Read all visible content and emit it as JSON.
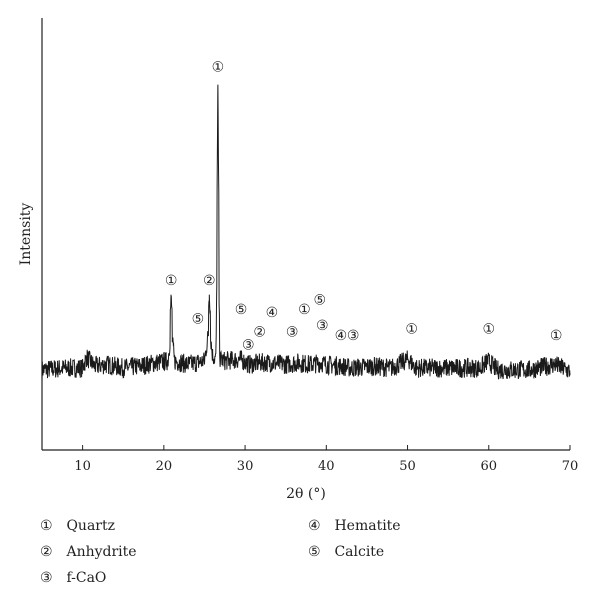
{
  "chart_data": {
    "type": "line",
    "xlabel": "2θ (°)",
    "ylabel": "Intensity",
    "xlim": [
      5,
      70
    ],
    "xticks": [
      "10",
      "20",
      "30",
      "40",
      "50",
      "60",
      "70"
    ],
    "ylim": [
      0,
      100
    ],
    "y_ticks_shown": false,
    "grid": false,
    "legend_placement": "bottom",
    "series": [
      {
        "x": [
          5,
          8,
          10,
          10.5,
          11.5,
          13,
          15,
          17,
          19,
          20.5,
          20.9,
          21.3,
          23,
          25,
          25.6,
          26.0,
          26.4,
          26.65,
          26.9,
          27.5,
          29.4,
          30.5,
          32,
          33,
          35,
          36.5,
          38,
          39.4,
          40,
          42,
          43,
          45.8,
          48,
          50.1,
          51,
          55,
          59,
          59.9,
          61,
          65,
          68.1,
          70
        ],
        "y": [
          4,
          5,
          5,
          11,
          6,
          7,
          5,
          6,
          8,
          9,
          27,
          9,
          7,
          9,
          28,
          12,
          10,
          93,
          10,
          9,
          10,
          7,
          8,
          8,
          7,
          8,
          7,
          8,
          7,
          6,
          5,
          6,
          5,
          10,
          5,
          5,
          5,
          9,
          4,
          4,
          7,
          3
        ]
      }
    ],
    "annotations": [
      {
        "label": "①",
        "x": 26.65,
        "y": 97
      },
      {
        "label": "①",
        "x": 20.9,
        "y": 31
      },
      {
        "label": "②",
        "x": 25.6,
        "y": 31
      },
      {
        "label": "⑤",
        "x": 24.2,
        "y": 19
      },
      {
        "label": "⑤",
        "x": 29.5,
        "y": 22
      },
      {
        "label": "③",
        "x": 30.4,
        "y": 11
      },
      {
        "label": "②",
        "x": 31.8,
        "y": 15
      },
      {
        "label": "④",
        "x": 33.3,
        "y": 21
      },
      {
        "label": "③",
        "x": 35.8,
        "y": 15
      },
      {
        "label": "①",
        "x": 37.3,
        "y": 22
      },
      {
        "label": "⑤",
        "x": 39.2,
        "y": 25
      },
      {
        "label": "③",
        "x": 39.5,
        "y": 17
      },
      {
        "label": "④",
        "x": 41.8,
        "y": 14
      },
      {
        "label": "③",
        "x": 43.3,
        "y": 14
      },
      {
        "label": "①",
        "x": 50.5,
        "y": 16
      },
      {
        "label": "①",
        "x": 60.0,
        "y": 16
      },
      {
        "label": "①",
        "x": 68.3,
        "y": 14
      }
    ],
    "legend": [
      {
        "symbol": "①",
        "label": "Quartz"
      },
      {
        "symbol": "②",
        "label": "Anhydrite"
      },
      {
        "symbol": "③",
        "label": "f-CaO"
      },
      {
        "symbol": "④",
        "label": "Hematite"
      },
      {
        "symbol": "⑤",
        "label": "Calcite"
      }
    ],
    "line_color": "#1a1a1a"
  }
}
